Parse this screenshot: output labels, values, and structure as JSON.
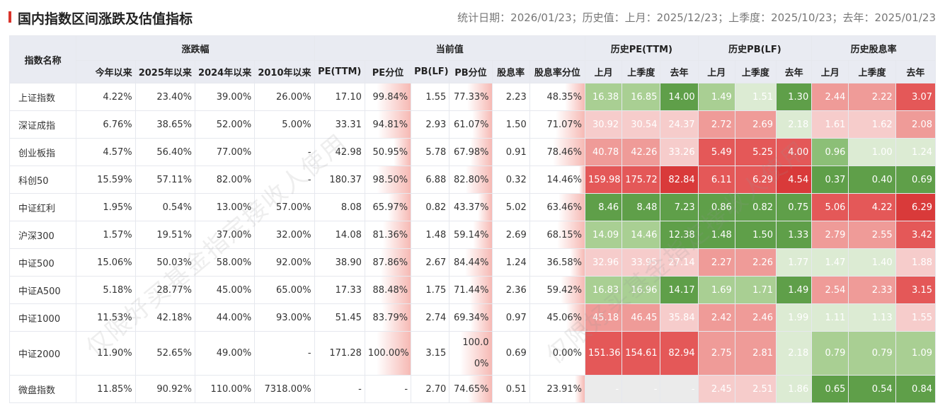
{
  "header": {
    "title": "国内指数区间涨跌及估值指标",
    "meta": "统计日期：2026/01/23；历史值：上月：2025/12/23；上季度：2025/10/23；去年：2025/01/23"
  },
  "groups": {
    "name": "指数名称",
    "change": "涨跌幅",
    "current": "当前值",
    "pe_hist": "历史PE(TTM)",
    "pb_hist": "历史PB(LF)",
    "div_hist": "历史股息率"
  },
  "columns": [
    "今年以来",
    "2025年以来",
    "2024年以来",
    "2010年以来",
    "PE(TTM)",
    "PE分位",
    "PB(LF)",
    "PB分位",
    "股息率",
    "股息率分位",
    "上月",
    "上季度",
    "去年",
    "上月",
    "上季度",
    "去年",
    "上月",
    "上季度",
    "去年"
  ],
  "watermark": "仅限好买基金指定接收人使用",
  "rows": [
    {
      "name": "上证指数",
      "chg": [
        "4.22%",
        "23.40%",
        "39.00%",
        "26.00%"
      ],
      "cur": [
        "17.10",
        "99.84%",
        "1.55",
        "77.33%",
        "2.23",
        "48.35%"
      ],
      "pe": [
        "16.38",
        "16.85",
        "14.00"
      ],
      "pb": [
        "1.49",
        "1.51",
        "1.30"
      ],
      "dv": [
        "2.44",
        "2.22",
        "3.07"
      ]
    },
    {
      "name": "深证成指",
      "chg": [
        "6.76%",
        "38.65%",
        "52.00%",
        "5.00%"
      ],
      "cur": [
        "33.31",
        "94.81%",
        "2.93",
        "61.07%",
        "1.50",
        "71.07%"
      ],
      "pe": [
        "30.92",
        "30.54",
        "24.37"
      ],
      "pb": [
        "2.72",
        "2.69",
        "2.18"
      ],
      "dv": [
        "1.61",
        "1.62",
        "2.08"
      ]
    },
    {
      "name": "创业板指",
      "chg": [
        "4.57%",
        "56.40%",
        "77.00%",
        "-"
      ],
      "cur": [
        "42.98",
        "50.95%",
        "5.78",
        "67.98%",
        "0.91",
        "78.46%"
      ],
      "pe": [
        "40.78",
        "42.26",
        "33.26"
      ],
      "pb": [
        "5.49",
        "5.25",
        "4.00"
      ],
      "dv": [
        "0.96",
        "1.00",
        "1.24"
      ]
    },
    {
      "name": "科创50",
      "chg": [
        "15.59%",
        "57.11%",
        "82.00%",
        "-"
      ],
      "cur": [
        "180.37",
        "98.50%",
        "6.88",
        "82.80%",
        "0.32",
        "14.46%"
      ],
      "pe": [
        "159.98",
        "175.72",
        "82.84"
      ],
      "pb": [
        "6.11",
        "6.29",
        "4.54"
      ],
      "dv": [
        "0.37",
        "0.40",
        "0.69"
      ]
    },
    {
      "name": "中证红利",
      "chg": [
        "1.95%",
        "0.54%",
        "13.00%",
        "57.00%"
      ],
      "cur": [
        "8.08",
        "65.97%",
        "0.82",
        "43.37%",
        "5.02",
        "63.46%"
      ],
      "pe": [
        "8.46",
        "8.48",
        "7.23"
      ],
      "pb": [
        "0.86",
        "0.82",
        "0.75"
      ],
      "dv": [
        "5.06",
        "4.22",
        "6.29"
      ]
    },
    {
      "name": "沪深300",
      "chg": [
        "1.57%",
        "19.51%",
        "37.00%",
        "32.00%"
      ],
      "cur": [
        "14.08",
        "81.36%",
        "1.48",
        "59.14%",
        "2.69",
        "68.15%"
      ],
      "pe": [
        "14.09",
        "14.46",
        "12.38"
      ],
      "pb": [
        "1.48",
        "1.50",
        "1.33"
      ],
      "dv": [
        "2.79",
        "2.55",
        "3.42"
      ]
    },
    {
      "name": "中证500",
      "chg": [
        "15.06%",
        "50.03%",
        "58.00%",
        "92.00%"
      ],
      "cur": [
        "38.90",
        "87.86%",
        "2.67",
        "84.44%",
        "1.24",
        "36.58%"
      ],
      "pe": [
        "32.96",
        "33.95",
        "27.14"
      ],
      "pb": [
        "2.27",
        "2.26",
        "1.77"
      ],
      "dv": [
        "1.47",
        "1.40",
        "1.88"
      ]
    },
    {
      "name": "中证A500",
      "chg": [
        "5.18%",
        "28.77%",
        "45.00%",
        "65.00%"
      ],
      "cur": [
        "17.33",
        "88.48%",
        "1.75",
        "71.44%",
        "2.36",
        "59.42%"
      ],
      "pe": [
        "16.83",
        "16.96",
        "14.17"
      ],
      "pb": [
        "1.69",
        "1.71",
        "1.49"
      ],
      "dv": [
        "2.54",
        "2.33",
        "3.15"
      ]
    },
    {
      "name": "中证1000",
      "chg": [
        "11.53%",
        "42.18%",
        "44.00%",
        "93.00%"
      ],
      "cur": [
        "51.45",
        "83.79%",
        "2.74",
        "69.34%",
        "0.97",
        "45.06%"
      ],
      "pe": [
        "45.18",
        "46.45",
        "35.84"
      ],
      "pb": [
        "2.42",
        "2.46",
        "1.99"
      ],
      "dv": [
        "1.11",
        "1.13",
        "1.55"
      ]
    },
    {
      "name": "中证2000",
      "chg": [
        "11.90%",
        "52.65%",
        "49.00%",
        "-"
      ],
      "cur": [
        "171.28",
        "100.00%",
        "3.15",
        "100.00%",
        "0.69",
        "0.00%"
      ],
      "pe": [
        "151.36",
        "154.61",
        "82.94"
      ],
      "pb": [
        "2.75",
        "2.81",
        "2.18"
      ],
      "dv": [
        "0.79",
        "0.79",
        "1.09"
      ]
    },
    {
      "name": "微盘指数",
      "chg": [
        "11.85%",
        "90.92%",
        "110.00%",
        "7318.00%"
      ],
      "cur": [
        "-",
        "-",
        "2.70",
        "74.65%",
        "0.51",
        "23.91%"
      ],
      "pe": [
        "-",
        "-",
        "-"
      ],
      "pb": [
        "2.45",
        "2.51",
        "1.86"
      ],
      "dv": [
        "0.65",
        "0.54",
        "0.84"
      ]
    }
  ]
}
